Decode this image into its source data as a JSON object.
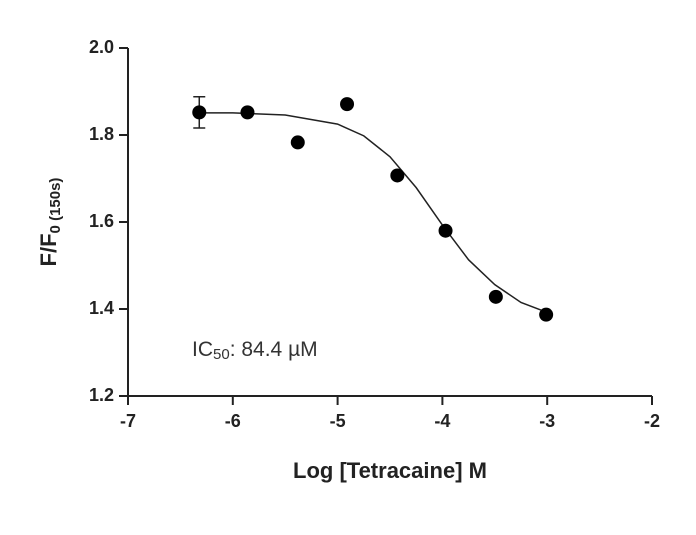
{
  "chart_data": {
    "type": "scatter",
    "x_label": "Log [Tetracaine] M",
    "y_label": "F/F",
    "y_label_sub": "0 (150s)",
    "annotation": {
      "prefix": "IC",
      "sub": "50",
      "text": ":  84.4 µM"
    },
    "x": [
      -6.32,
      -5.86,
      -5.38,
      -4.91,
      -4.43,
      -3.97,
      -3.49,
      -3.01
    ],
    "values": [
      1.852,
      1.852,
      1.783,
      1.871,
      1.707,
      1.58,
      1.428,
      1.387
    ],
    "errors": [
      0.036,
      null,
      null,
      null,
      null,
      null,
      null,
      null
    ],
    "color": "#000000",
    "curve": {
      "x": [
        -6.32,
        -6,
        -5.5,
        -5,
        -4.75,
        -4.5,
        -4.25,
        -4,
        -3.75,
        -3.5,
        -3.25,
        -3
      ],
      "values": [
        1.851,
        1.851,
        1.846,
        1.825,
        1.798,
        1.75,
        1.679,
        1.593,
        1.513,
        1.456,
        1.415,
        1.392
      ]
    },
    "xlim": [
      -7,
      -2
    ],
    "xticks": [
      -7,
      -6,
      -5,
      -4,
      -3,
      -2
    ],
    "ylim": [
      1.2,
      2.0
    ],
    "yticks": [
      {
        "value": 1.2,
        "label": "1.2"
      },
      {
        "value": 1.4,
        "label": "1.4"
      },
      {
        "value": 1.6,
        "label": "1.6"
      },
      {
        "value": 1.8,
        "label": "1.8"
      },
      {
        "value": 2.0,
        "label": "2.0"
      }
    ]
  }
}
